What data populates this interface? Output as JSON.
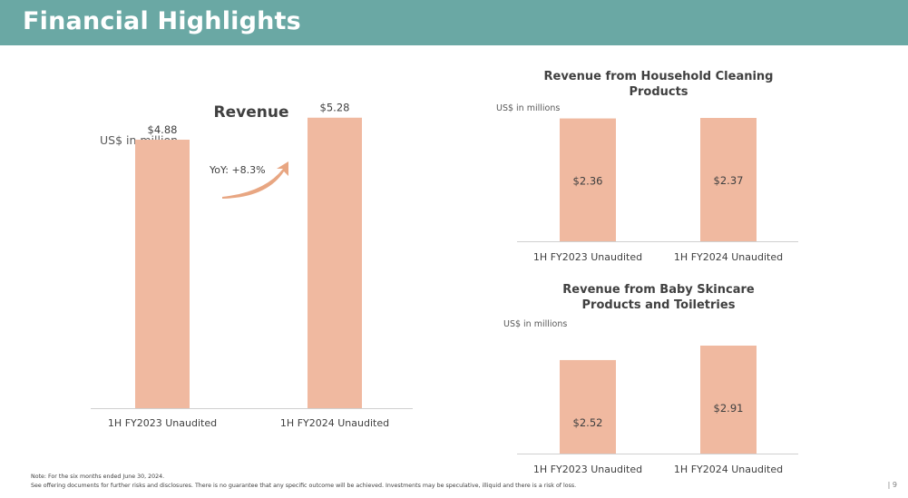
{
  "header": {
    "title": "Financial Highlights"
  },
  "colors": {
    "header_bg": "#6aa8a4",
    "bar": "#f0b9a0",
    "arrow": "#e8a682",
    "axis": "#d0d0d0"
  },
  "footnotes": {
    "note": "Note: For the six months ended June 30, 2024.",
    "disclaimer": "See offering documents for further risks and disclosures. There is no guarantee that any specific outcome will be achieved. Investments may be speculative, illiquid and there is a risk of loss."
  },
  "page_number": "| 9",
  "chart_data": [
    {
      "type": "bar",
      "title": "Revenue",
      "unit_label": "US$ in million",
      "categories": [
        "1H FY2023 Unaudited",
        "1H FY2024 Unaudited"
      ],
      "values": [
        4.88,
        5.28
      ],
      "data_labels": [
        "$4.88",
        "$5.28"
      ],
      "label_position": "above",
      "annotation": "YoY: +8.3%",
      "ylim": [
        0,
        6.1
      ]
    },
    {
      "type": "bar",
      "title": "Revenue from Household Cleaning Products",
      "title_lines": [
        "Revenue from Household Cleaning",
        "Products"
      ],
      "unit_label": "US$ in millions",
      "categories": [
        "1H FY2023 Unaudited",
        "1H FY2024 Unaudited"
      ],
      "values": [
        2.36,
        2.37
      ],
      "data_labels": [
        "$2.36",
        "$2.37"
      ],
      "label_position": "inside",
      "ylim": [
        0,
        2.37
      ]
    },
    {
      "type": "bar",
      "title": "Revenue from Baby Skincare Products and Toiletries",
      "title_lines": [
        "Revenue from Baby Skincare",
        "Products and Toiletries"
      ],
      "unit_label": "US$ in millions",
      "categories": [
        "1H FY2023 Unaudited",
        "1H FY2024 Unaudited"
      ],
      "values": [
        2.52,
        2.91
      ],
      "data_labels": [
        "$2.52",
        "$2.91"
      ],
      "label_position": "inside",
      "ylim": [
        0,
        2.91
      ]
    }
  ]
}
